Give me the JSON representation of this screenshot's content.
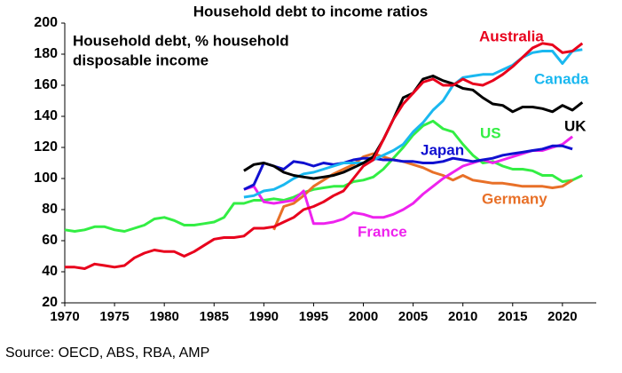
{
  "chart_data": {
    "type": "line",
    "title": "Household debt to income ratios",
    "annotation": [
      "Household debt, % household",
      "disposable income"
    ],
    "source": "Source: OECD, ABS, RBA, AMP",
    "xlim": [
      1970,
      2023.4
    ],
    "xticks": [
      1970,
      1975,
      1980,
      1985,
      1990,
      1995,
      2000,
      2005,
      2010,
      2015,
      2020
    ],
    "ylim": [
      20,
      200
    ],
    "yticks": [
      20,
      40,
      60,
      80,
      100,
      120,
      140,
      160,
      180,
      200
    ],
    "grid": false,
    "series": [
      {
        "name": "US",
        "color": "#33ee44",
        "x": [
          1970,
          1971,
          1972,
          1973,
          1974,
          1975,
          1976,
          1977,
          1978,
          1979,
          1980,
          1981,
          1982,
          1983,
          1984,
          1985,
          1986,
          1987,
          1988,
          1989,
          1990,
          1991,
          1992,
          1993,
          1994,
          1995,
          1996,
          1997,
          1998,
          1999,
          2000,
          2001,
          2002,
          2003,
          2004,
          2005,
          2006,
          2007,
          2008,
          2009,
          2010,
          2011,
          2012,
          2013,
          2014,
          2015,
          2016,
          2017,
          2018,
          2019,
          2020,
          2021,
          2022
        ],
        "values": [
          67,
          66,
          67,
          69,
          69,
          67,
          66,
          68,
          70,
          74,
          75,
          73,
          70,
          70,
          71,
          72,
          75,
          84,
          84,
          86,
          86,
          87,
          86,
          88,
          91,
          93,
          94,
          95,
          95,
          98,
          99,
          101,
          106,
          113,
          120,
          128,
          134,
          137,
          132,
          130,
          122,
          115,
          110,
          111,
          108,
          106,
          106,
          105,
          102,
          102,
          98,
          99,
          102
        ]
      },
      {
        "name": "Germany",
        "color": "#e87028",
        "x": [
          1991,
          1992,
          1993,
          1994,
          1995,
          1996,
          1997,
          1998,
          1999,
          2000,
          2001,
          2002,
          2003,
          2004,
          2005,
          2006,
          2007,
          2008,
          2009,
          2010,
          2011,
          2012,
          2013,
          2014,
          2015,
          2016,
          2017,
          2018,
          2019,
          2020,
          2021
        ],
        "values": [
          67,
          82,
          84,
          89,
          95,
          99,
          103,
          106,
          109,
          114,
          116,
          114,
          112,
          111,
          109,
          107,
          104,
          102,
          99,
          102,
          99,
          98,
          97,
          97,
          96,
          95,
          95,
          95,
          94,
          95,
          99
        ]
      },
      {
        "name": "France",
        "color": "#ee22ee",
        "x": [
          1988,
          1989,
          1990,
          1991,
          1992,
          1993,
          1994,
          1995,
          1996,
          1997,
          1998,
          1999,
          2000,
          2001,
          2002,
          2003,
          2004,
          2005,
          2006,
          2007,
          2008,
          2009,
          2010,
          2011,
          2012,
          2013,
          2014,
          2015,
          2016,
          2017,
          2018,
          2019,
          2020,
          2021
        ],
        "values": [
          93,
          95,
          85,
          84,
          85,
          86,
          92,
          71,
          71,
          72,
          74,
          78,
          77,
          75,
          75,
          77,
          80,
          84,
          90,
          95,
          100,
          104,
          108,
          110,
          112,
          110,
          112,
          114,
          116,
          118,
          118,
          120,
          122,
          127
        ]
      },
      {
        "name": "Japan",
        "color": "#1010d0",
        "x": [
          1988,
          1989,
          1990,
          1991,
          1992,
          1993,
          1994,
          1995,
          1996,
          1997,
          1998,
          1999,
          2000,
          2001,
          2002,
          2003,
          2004,
          2005,
          2006,
          2007,
          2008,
          2009,
          2010,
          2011,
          2012,
          2013,
          2014,
          2015,
          2016,
          2017,
          2018,
          2019,
          2020,
          2021
        ],
        "values": [
          93,
          96,
          110,
          108,
          106,
          111,
          110,
          108,
          110,
          109,
          110,
          112,
          113,
          113,
          112,
          112,
          111,
          111,
          110,
          110,
          111,
          113,
          112,
          111,
          112,
          113,
          115,
          116,
          117,
          118,
          119,
          121,
          121,
          119
        ]
      },
      {
        "name": "Canada",
        "color": "#1ab8f0",
        "x": [
          1988,
          1989,
          1990,
          1991,
          1992,
          1993,
          1994,
          1995,
          1996,
          1997,
          1998,
          1999,
          2000,
          2001,
          2002,
          2003,
          2004,
          2005,
          2006,
          2007,
          2008,
          2009,
          2010,
          2011,
          2012,
          2013,
          2014,
          2015,
          2016,
          2017,
          2018,
          2019,
          2020,
          2021,
          2022
        ],
        "values": [
          88,
          89,
          92,
          93,
          96,
          100,
          103,
          104,
          106,
          108,
          110,
          110,
          110,
          112,
          115,
          118,
          122,
          130,
          136,
          144,
          150,
          160,
          165,
          166,
          167,
          167,
          170,
          173,
          178,
          181,
          182,
          182,
          174,
          182,
          183
        ]
      },
      {
        "name": "UK",
        "color": "#000000",
        "x": [
          1988,
          1989,
          1990,
          1991,
          1992,
          1993,
          1994,
          1995,
          1996,
          1997,
          1998,
          1999,
          2000,
          2001,
          2002,
          2003,
          2004,
          2005,
          2006,
          2007,
          2008,
          2009,
          2010,
          2011,
          2012,
          2013,
          2014,
          2015,
          2016,
          2017,
          2018,
          2019,
          2020,
          2021,
          2022
        ],
        "values": [
          105,
          109,
          110,
          108,
          104,
          102,
          101,
          100,
          101,
          102,
          104,
          107,
          110,
          114,
          125,
          138,
          152,
          155,
          164,
          166,
          163,
          161,
          158,
          157,
          152,
          148,
          147,
          143,
          146,
          146,
          145,
          143,
          147,
          144,
          149
        ]
      },
      {
        "name": "Australia",
        "color": "#e8001c",
        "x": [
          1970,
          1971,
          1972,
          1973,
          1974,
          1975,
          1976,
          1977,
          1978,
          1979,
          1980,
          1981,
          1982,
          1983,
          1984,
          1985,
          1986,
          1987,
          1988,
          1989,
          1990,
          1991,
          1992,
          1993,
          1994,
          1995,
          1996,
          1997,
          1998,
          1999,
          2000,
          2001,
          2002,
          2003,
          2004,
          2005,
          2006,
          2007,
          2008,
          2009,
          2010,
          2011,
          2012,
          2013,
          2014,
          2015,
          2016,
          2017,
          2018,
          2019,
          2020,
          2021,
          2022
        ],
        "values": [
          43,
          43,
          42,
          45,
          44,
          43,
          44,
          49,
          52,
          54,
          53,
          53,
          50,
          53,
          57,
          61,
          62,
          62,
          63,
          68,
          68,
          69,
          72,
          75,
          80,
          82,
          85,
          89,
          92,
          100,
          108,
          112,
          125,
          138,
          148,
          155,
          162,
          164,
          160,
          160,
          164,
          161,
          160,
          163,
          167,
          172,
          178,
          184,
          187,
          186,
          181,
          182,
          187
        ]
      }
    ]
  }
}
